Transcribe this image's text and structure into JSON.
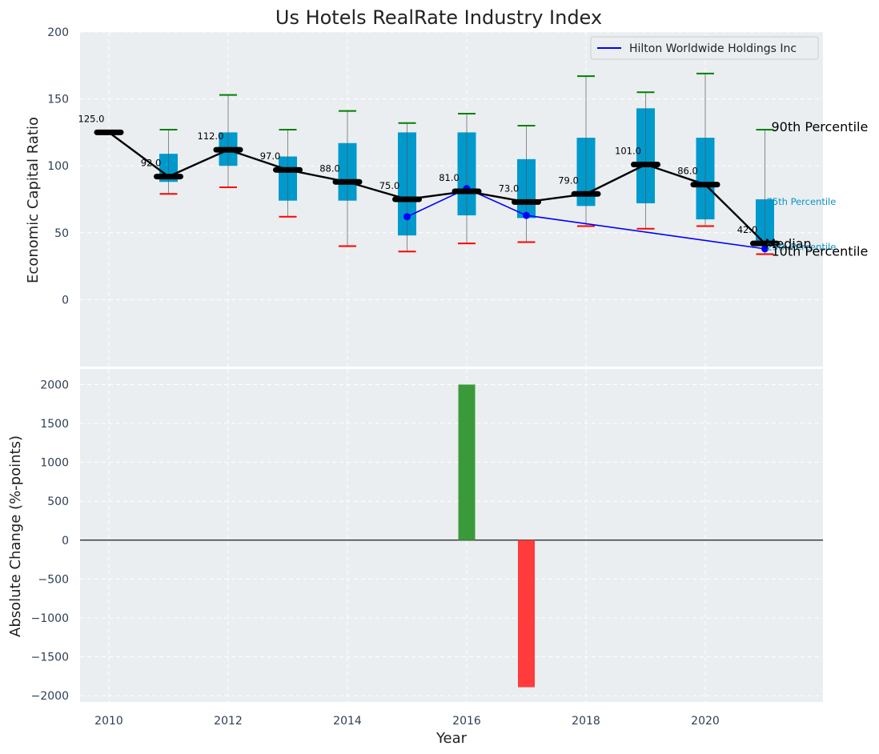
{
  "chart_data": [
    {
      "type": "box",
      "title": "Us Hotels RealRate Industry Index",
      "ylabel": "Economic Capital Ratio",
      "ylim": [
        -50,
        200
      ],
      "yticks": [
        "0",
        "50",
        "100",
        "150",
        "200"
      ],
      "grid": true,
      "legend": {
        "position": "top-right",
        "entries": [
          "Hilton Worldwide Holdings Inc"
        ]
      },
      "years": [
        2010,
        2011,
        2012,
        2013,
        2014,
        2015,
        2016,
        2017,
        2018,
        2019,
        2020,
        2021
      ],
      "median_labels": [
        "125.0",
        "92.0",
        "112.0",
        "97.0",
        "88.0",
        "75.0",
        "81.0",
        "73.0",
        "79.0",
        "101.0",
        "86.0",
        "42.0"
      ],
      "series": [
        {
          "name": "Median",
          "values": [
            125,
            92,
            112,
            97,
            88,
            75,
            81,
            73,
            79,
            101,
            86,
            42
          ]
        },
        {
          "name": "25th Percentile",
          "values": [
            125,
            88,
            100,
            74,
            74,
            48,
            63,
            61,
            70,
            72,
            60,
            40
          ]
        },
        {
          "name": "75th Percentile",
          "values": [
            125,
            109,
            125,
            107,
            117,
            125,
            125,
            105,
            121,
            143,
            121,
            75
          ]
        },
        {
          "name": "90th Percentile",
          "values": [
            null,
            127,
            153,
            127,
            141,
            132,
            139,
            130,
            167,
            155,
            169,
            127
          ]
        },
        {
          "name": "10th Percentile",
          "values": [
            null,
            79,
            84,
            62,
            40,
            36,
            42,
            43,
            55,
            53,
            55,
            34
          ]
        },
        {
          "name": "Hilton Worldwide Holdings Inc",
          "x": [
            2015,
            2016,
            2017,
            2021
          ],
          "values": [
            62,
            83,
            63,
            38
          ]
        }
      ],
      "side_labels": [
        "90th Percentile",
        "75th Percentile",
        "Median",
        "25th Percentile",
        "10th Percentile"
      ],
      "colors": {
        "box": "#0099cc",
        "median": "#000000",
        "hilton": "#0000ff",
        "upper_whisker": "#008000",
        "lower_whisker": "#ff0000",
        "background": "#eaeef0"
      }
    },
    {
      "type": "bar",
      "ylabel": "Absolute Change (%-points)",
      "xlabel": "Year",
      "ylim": [
        -2080,
        2200
      ],
      "yticks": [
        "−2000",
        "−1500",
        "−1000",
        "−500",
        "0",
        "500",
        "1000",
        "1500",
        "2000"
      ],
      "xticks": [
        "2010",
        "2012",
        "2014",
        "2016",
        "2018",
        "2020"
      ],
      "bars": [
        {
          "year": 2016,
          "value": 2000,
          "color": "#3a9a3a"
        },
        {
          "year": 2017,
          "value": -1890,
          "color": "#ff3b3b"
        }
      ]
    }
  ]
}
